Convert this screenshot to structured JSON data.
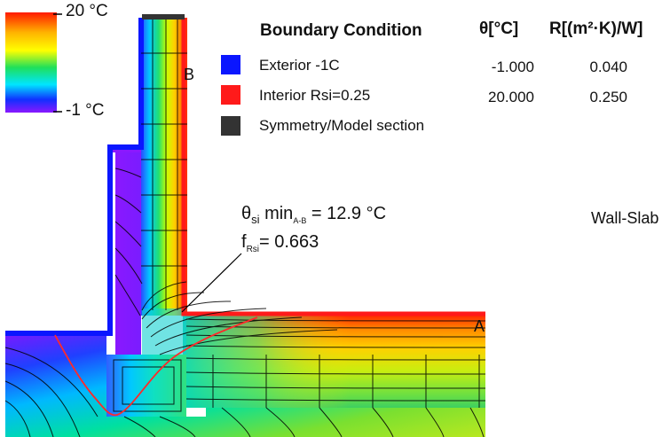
{
  "scale": {
    "max_label": "20 °C",
    "min_label": "-1 °C"
  },
  "legend": {
    "header_title": "Boundary Condition",
    "header_theta": "θ[°C]",
    "header_r": "R[(m²·K)/W]",
    "rows": [
      {
        "name": "Exterior -1C",
        "color": "#0a16ff",
        "theta": "-1.000",
        "r": "0.040"
      },
      {
        "name": "Interior Rsi=0.25",
        "color": "#ff1a1a",
        "theta": "20.000",
        "r": "0.250"
      },
      {
        "name": "Symmetry/Model section",
        "color": "#333333",
        "theta": "",
        "r": ""
      }
    ]
  },
  "annotation": {
    "theta_line": "θsi min A-B = 12.9 °C",
    "theta_prefix": "θ",
    "theta_sub": "si",
    "theta_mid": " min",
    "theta_sub2": "A-B",
    "theta_value": " = 12.9 °C",
    "f_prefix": "f",
    "f_sub": "Rsi",
    "f_value": "= 0.663"
  },
  "markers": {
    "a": "A",
    "b": "B"
  },
  "side_label": "Wall-Slab",
  "colors": {
    "exterior": "#0a16ff",
    "interior": "#ff1a1a",
    "symmetry": "#333333"
  }
}
